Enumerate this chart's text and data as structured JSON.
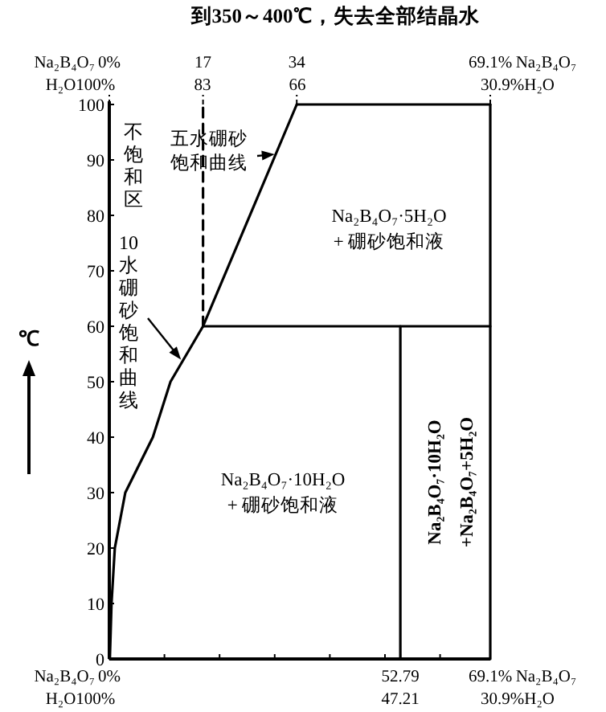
{
  "chart_data": {
    "type": "line",
    "title": "到350～400℃，失去全部结晶水",
    "ylabel": "℃",
    "xlabel": "Na₂B₄O₇",
    "x2label": "Na₂B₄O₇",
    "xlim": [
      0,
      69.1
    ],
    "ylim": [
      0,
      100
    ],
    "xticks": [
      {
        "value": 0,
        "label": "0%"
      },
      {
        "value": 10,
        "label": null
      },
      {
        "value": 20,
        "label": null
      },
      {
        "value": 30,
        "label": null
      },
      {
        "value": 40,
        "label": null
      },
      {
        "value": 50,
        "label": null
      },
      52.79,
      {
        "value": 60,
        "label": null
      },
      {
        "value": 69.1,
        "label": "69.1%"
      }
    ],
    "x2lim": [
      0,
      69.1
    ],
    "x2ticks": [
      {
        "value": 0,
        "label": "0%"
      },
      17,
      34,
      {
        "value": 69.1,
        "label": "69.1%"
      }
    ],
    "yticks": [
      0,
      10,
      20,
      30,
      40,
      50,
      60,
      70,
      80,
      90,
      100
    ],
    "series": [
      {
        "color": "#000000",
        "x": [
          0.1,
          0.4,
          1.0,
          2.9,
          7.9,
          11.1,
          17,
          34
        ],
        "values": [
          0,
          10,
          20,
          30,
          40,
          50,
          60,
          100
        ]
      },
      {
        "color": "#000000",
        "x": [
          17,
          69.1
        ],
        "values": [
          60,
          60
        ]
      },
      {
        "color": "#000000",
        "x": [
          52.79,
          52.79
        ],
        "values": [
          0,
          60
        ]
      },
      {
        "color": "#000000",
        "x": [
          34,
          69.1
        ],
        "values": [
          100,
          100
        ]
      },
      {
        "color": "#000000",
        "x": [
          69.1,
          69.1
        ],
        "values": [
          0,
          100
        ]
      },
      {
        "color": "#000000",
        "x": [
          17,
          17
        ],
        "values": [
          60,
          100
        ],
        "line_style": "dashed"
      }
    ],
    "annotations": [
      "不饱和区",
      {
        "text": "10水硼砂饱和曲线",
        "x": 13,
        "y": 54
      },
      {
        "text": "五水硼砂饱和曲线",
        "x": 30,
        "y": 91
      },
      "Na₂B₄O₇·5H₂O\n+ 硼砂饱和液",
      "Na₂B₄O₇·10H₂O\n+ 硼砂饱和液",
      "Na₂B₄O₇·10H₂O\n+Na₂B₄O₇+5H₂O",
      "H₂O100%",
      "47.21",
      "30.9%H₂O",
      "H₂O100%",
      "83",
      "66",
      "30.9%H₂O"
    ]
  }
}
